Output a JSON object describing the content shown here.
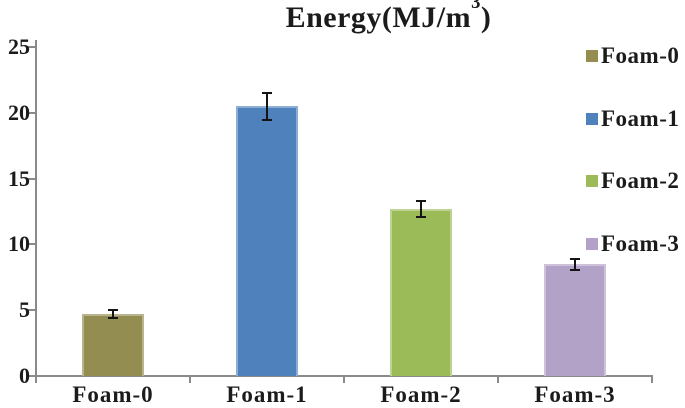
{
  "title": {
    "prefix": "Energy(MJ/m",
    "superscript": "3",
    "suffix": ")"
  },
  "chart_data": {
    "type": "bar",
    "title": "Energy(MJ/m³)",
    "categories": [
      "Foam-0",
      "Foam-1",
      "Foam-2",
      "Foam-3"
    ],
    "values": [
      4.7,
      20.5,
      12.7,
      8.5
    ],
    "error_bars": [
      0.4,
      1.1,
      0.7,
      0.5
    ],
    "colors": [
      "#938D52",
      "#4F81BD",
      "#9BBB59",
      "#B3A2C7"
    ],
    "ylim": [
      0,
      25
    ],
    "y_ticks": [
      0,
      5,
      10,
      15,
      20,
      25
    ],
    "xlabel": "",
    "ylabel": "",
    "grid": false,
    "legend": {
      "position": "right",
      "entries": [
        "Foam-0",
        "Foam-1",
        "Foam-2",
        "Foam-3"
      ]
    }
  },
  "style_colors": {
    "axis": "#8a8a8a",
    "text": "#1b1b1b",
    "error_bar": "#141414"
  }
}
